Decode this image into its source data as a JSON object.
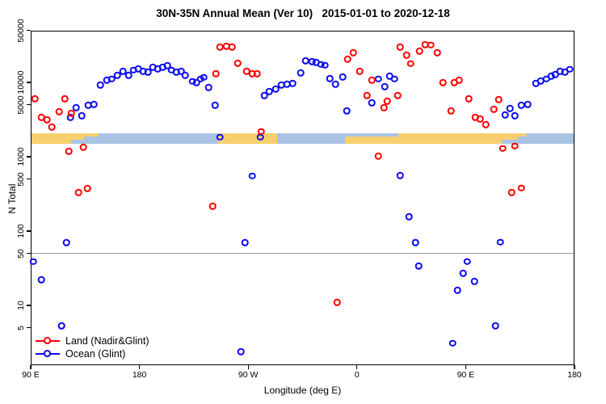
{
  "title": "30N-35N Annual Mean (Ver 10)   2015-01-01 to 2020-12-18",
  "chart_data": {
    "type": "scatter",
    "title": "30N-35N Annual Mean (Ver 10)   2015-01-01 to 2020-12-18",
    "xlabel": "Longitude (deg E)",
    "ylabel": "N Total",
    "x_axis": {
      "note": "longitude axis wraps eastward from 90E through 180, 90W, 0, 90E to 180",
      "range_deg": [
        90,
        540
      ],
      "ticks": [
        {
          "deg": 90,
          "label": "90 E"
        },
        {
          "deg": 180,
          "label": "180"
        },
        {
          "deg": 270,
          "label": "90 W"
        },
        {
          "deg": 360,
          "label": "0"
        },
        {
          "deg": 450,
          "label": "90 E"
        },
        {
          "deg": 540,
          "label": "180"
        }
      ]
    },
    "y_axis": {
      "scale": "log",
      "range": [
        1.6,
        50000
      ],
      "ticks": [
        {
          "v": 50000,
          "label": "50000"
        },
        {
          "v": 10000,
          "label": "10000"
        },
        {
          "v": 5000,
          "label": "5000"
        },
        {
          "v": 1000,
          "label": "1000"
        },
        {
          "v": 500,
          "label": "500"
        },
        {
          "v": 100,
          "label": "100"
        },
        {
          "v": 50,
          "label": "50"
        },
        {
          "v": 10,
          "label": "10"
        },
        {
          "v": 5,
          "label": "5"
        }
      ]
    },
    "reference_line": {
      "value": 50,
      "color": "#9a9a9a"
    },
    "map_band": {
      "n_top": 2070,
      "n_bottom": 1500,
      "ocean_color": "#a9c3e4",
      "land_color": "#f7cf6d",
      "land_segments": [
        {
          "from": 90,
          "to": 123.5,
          "frac": 1,
          "align": "top"
        },
        {
          "from": 123.5,
          "to": 134,
          "frac": 0.65,
          "align": "top"
        },
        {
          "from": 134,
          "to": 146,
          "frac": 0.3,
          "align": "top"
        },
        {
          "from": 245,
          "to": 294,
          "frac": 1,
          "align": "top"
        },
        {
          "from": 350,
          "to": 394,
          "frac": 0.7,
          "align": "bottom"
        },
        {
          "from": 394,
          "to": 480,
          "frac": 1,
          "align": "top"
        },
        {
          "from": 480,
          "to": 493,
          "frac": 0.6,
          "align": "top"
        },
        {
          "from": 493,
          "to": 500,
          "frac": 0.3,
          "align": "top"
        }
      ]
    },
    "legend": [
      {
        "label": "Land (Nadir&Glint)",
        "color": "#fe0000"
      },
      {
        "label": "Ocean (Glint)",
        "color": "#0a0af0"
      }
    ],
    "series": [
      {
        "name": "Ocean (Glint)",
        "color": "#0a0af0",
        "points": [
          [
            122.8,
            3410
          ],
          [
            127.4,
            4600
          ],
          [
            132.1,
            3580
          ],
          [
            137.5,
            4960
          ],
          [
            142.2,
            5090
          ],
          [
            147.5,
            9280
          ],
          [
            152.9,
            10800
          ],
          [
            156.9,
            11100
          ],
          [
            161.5,
            12500
          ],
          [
            166.2,
            14200
          ],
          [
            170.9,
            12500
          ],
          [
            174.9,
            14600
          ],
          [
            178.9,
            15300
          ],
          [
            182.9,
            14200
          ],
          [
            187,
            13800
          ],
          [
            191,
            16100
          ],
          [
            195,
            15300
          ],
          [
            199,
            16100
          ],
          [
            203,
            16900
          ],
          [
            206.3,
            14600
          ],
          [
            210.4,
            13800
          ],
          [
            214.4,
            14200
          ],
          [
            217.7,
            12500
          ],
          [
            223.7,
            10300
          ],
          [
            227.1,
            10000
          ],
          [
            230.4,
            11100
          ],
          [
            233.1,
            11700
          ],
          [
            237.1,
            8620
          ],
          [
            242.4,
            4960
          ],
          [
            246.5,
            1830
          ],
          [
            279.9,
            1830
          ],
          [
            283.2,
            6700
          ],
          [
            287.2,
            7600
          ],
          [
            292.6,
            8180
          ],
          [
            297.3,
            9280
          ],
          [
            302,
            9520
          ],
          [
            306.6,
            9770
          ],
          [
            313.3,
            13500
          ],
          [
            317.3,
            19700
          ],
          [
            322.7,
            19200
          ],
          [
            326,
            18700
          ],
          [
            330,
            17400
          ],
          [
            333.4,
            17000
          ],
          [
            337.4,
            11300
          ],
          [
            342.1,
            9520
          ],
          [
            348.1,
            11900
          ],
          [
            351.4,
            4160
          ],
          [
            372.2,
            5350
          ],
          [
            377.5,
            11100
          ],
          [
            382.9,
            8820
          ],
          [
            386.9,
            12200
          ],
          [
            390.9,
            11100
          ],
          [
            395.6,
            560
          ],
          [
            403,
            156
          ],
          [
            408.3,
            70
          ],
          [
            411,
            34
          ],
          [
            443.1,
            16
          ],
          [
            447.7,
            27
          ],
          [
            451.1,
            39
          ],
          [
            457.1,
            21
          ],
          [
            439.1,
            3.1
          ],
          [
            474.5,
            5.3
          ],
          [
            478.5,
            71
          ],
          [
            482.5,
            3670
          ],
          [
            486.5,
            4450
          ],
          [
            490.6,
            3580
          ],
          [
            495.9,
            4960
          ],
          [
            501.3,
            5090
          ],
          [
            508,
            9770
          ],
          [
            512,
            10500
          ],
          [
            516.7,
            11100
          ],
          [
            520.7,
            12200
          ],
          [
            524,
            12800
          ],
          [
            528,
            14200
          ],
          [
            532,
            13800
          ],
          [
            536,
            15000
          ],
          [
            92,
            39
          ],
          [
            98.7,
            22
          ],
          [
            119.4,
            70
          ],
          [
            115.4,
            5.3
          ],
          [
            263.9,
            2.4
          ],
          [
            267.2,
            70
          ],
          [
            273.2,
            550
          ]
        ]
      },
      {
        "name": "Land (Nadir&Glint)",
        "color": "#fe0000",
        "points": [
          [
            93.3,
            6000
          ],
          [
            98.7,
            3400
          ],
          [
            103.4,
            3160
          ],
          [
            107.4,
            2510
          ],
          [
            113.4,
            4060
          ],
          [
            118.1,
            6060
          ],
          [
            123.4,
            3860
          ],
          [
            121.4,
            1190
          ],
          [
            133.5,
            1340
          ],
          [
            129.4,
            330
          ],
          [
            136.8,
            374
          ],
          [
            240.4,
            215
          ],
          [
            246.5,
            30100
          ],
          [
            251.8,
            30900
          ],
          [
            256.5,
            30100
          ],
          [
            243.1,
            13200
          ],
          [
            261.2,
            18200
          ],
          [
            268.5,
            14200
          ],
          [
            273.2,
            13200
          ],
          [
            277.2,
            13200
          ],
          [
            280.6,
            2180
          ],
          [
            343.4,
            11
          ],
          [
            352.1,
            20700
          ],
          [
            356.8,
            25300
          ],
          [
            362.1,
            14200
          ],
          [
            372.2,
            10800
          ],
          [
            368.1,
            6700
          ],
          [
            382.2,
            4600
          ],
          [
            384.9,
            5630
          ],
          [
            393.6,
            6700
          ],
          [
            377.5,
            1020
          ],
          [
            395.6,
            30100
          ],
          [
            400.9,
            23400
          ],
          [
            404.3,
            17900
          ],
          [
            411.6,
            26500
          ],
          [
            416.3,
            32500
          ],
          [
            421,
            31700
          ],
          [
            426.3,
            25300
          ],
          [
            431,
            10000
          ],
          [
            440.4,
            10000
          ],
          [
            444.4,
            10800
          ],
          [
            437.7,
            4160
          ],
          [
            452.4,
            6060
          ],
          [
            457.8,
            3410
          ],
          [
            461.8,
            3240
          ],
          [
            466.4,
            2720
          ],
          [
            473.1,
            4370
          ],
          [
            477.2,
            5910
          ],
          [
            480.5,
            1290
          ],
          [
            490.6,
            1390
          ],
          [
            487.9,
            330
          ],
          [
            495.9,
            380
          ]
        ]
      }
    ]
  }
}
